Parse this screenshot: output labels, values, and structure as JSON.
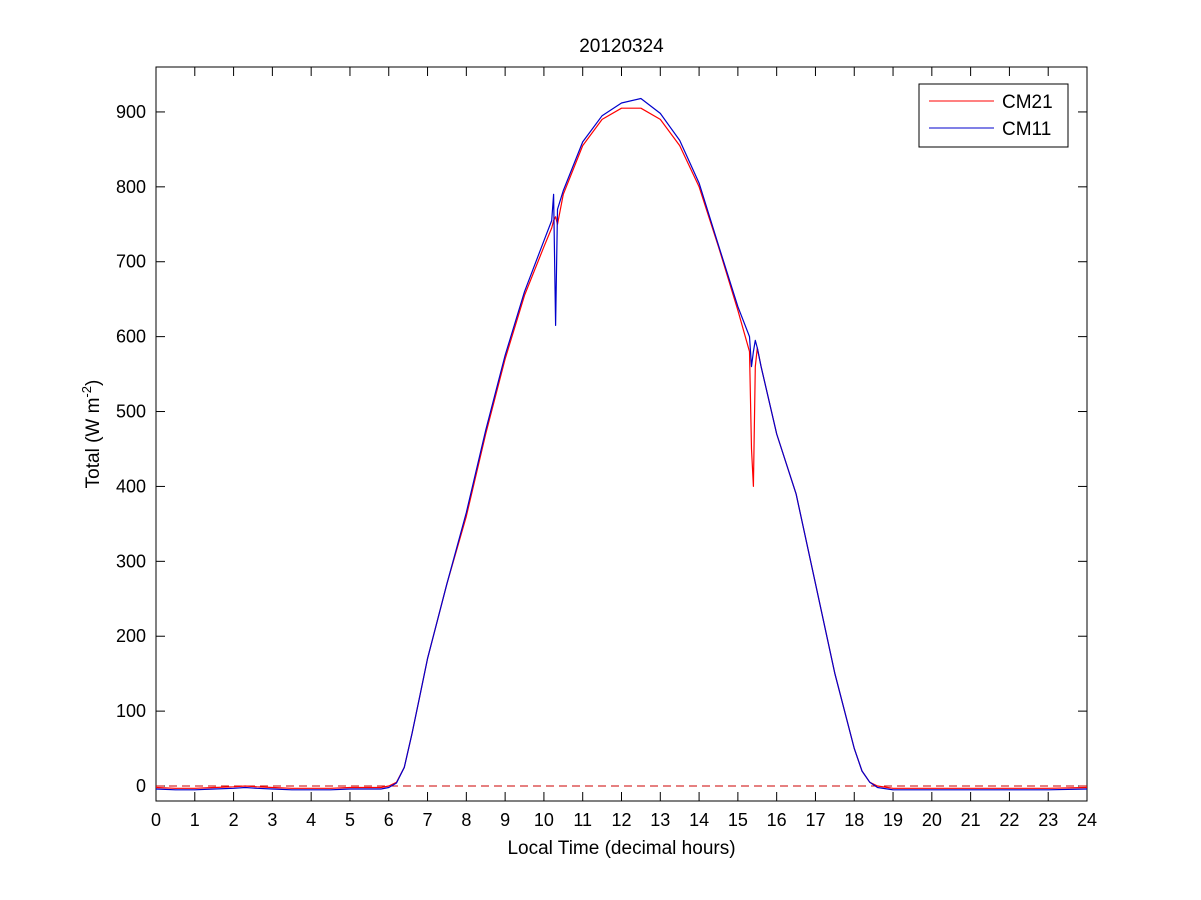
{
  "chart_data": {
    "type": "line",
    "title": "20120324",
    "xlabel": "Local Time (decimal hours)",
    "ylabel": "Total (W m",
    "ylabel_superscript": "-2",
    "ylabel_suffix": ")",
    "xlim": [
      0,
      24
    ],
    "ylim": [
      -20,
      960
    ],
    "xticks": [
      0,
      1,
      2,
      3,
      4,
      5,
      6,
      7,
      8,
      9,
      10,
      11,
      12,
      13,
      14,
      15,
      16,
      17,
      18,
      19,
      20,
      21,
      22,
      23,
      24
    ],
    "yticks": [
      0,
      100,
      200,
      300,
      400,
      500,
      600,
      700,
      800,
      900
    ],
    "grid": false,
    "legend_position": "top-right",
    "reference_line": {
      "y": 0,
      "style": "dashed",
      "color": "#cc0000"
    },
    "series": [
      {
        "name": "CM21",
        "color": "#ff0000",
        "x": [
          0,
          0.5,
          1,
          1.5,
          2,
          2.3,
          2.6,
          3,
          3.5,
          4,
          4.5,
          5,
          5.5,
          5.8,
          6.0,
          6.2,
          6.4,
          6.6,
          6.8,
          7,
          7.5,
          8,
          8.5,
          9,
          9.5,
          10,
          10.2,
          10.25,
          10.3,
          10.35,
          10.5,
          11,
          11.5,
          12,
          12.5,
          13,
          13.5,
          14,
          14.5,
          15,
          15.3,
          15.35,
          15.4,
          15.45,
          15.5,
          15.6,
          16,
          16.5,
          17,
          17.5,
          18,
          18.2,
          18.4,
          18.6,
          19,
          20,
          21,
          22,
          23,
          24
        ],
        "y": [
          -2,
          -3,
          -3,
          -2,
          -1,
          0,
          -1,
          -2,
          -3,
          -3,
          -3,
          -2,
          -2,
          -2,
          0,
          5,
          25,
          70,
          120,
          170,
          270,
          360,
          470,
          570,
          655,
          720,
          745,
          755,
          760,
          750,
          790,
          855,
          890,
          905,
          905,
          890,
          855,
          800,
          720,
          635,
          580,
          450,
          400,
          560,
          585,
          560,
          470,
          390,
          270,
          150,
          50,
          20,
          5,
          0,
          -3,
          -3,
          -3,
          -3,
          -3,
          -2
        ]
      },
      {
        "name": "CM11",
        "color": "#0000cc",
        "x": [
          0,
          0.5,
          1,
          1.5,
          2,
          2.3,
          2.6,
          3,
          3.5,
          4,
          4.5,
          5,
          5.5,
          5.8,
          6.0,
          6.2,
          6.4,
          6.6,
          6.8,
          7,
          7.5,
          8,
          8.5,
          9,
          9.5,
          10,
          10.2,
          10.25,
          10.3,
          10.35,
          10.5,
          11,
          11.5,
          12,
          12.5,
          13,
          13.5,
          14,
          14.5,
          15,
          15.3,
          15.35,
          15.4,
          15.45,
          15.5,
          15.6,
          16,
          16.5,
          17,
          17.5,
          18,
          18.2,
          18.4,
          18.6,
          19,
          20,
          21,
          22,
          23,
          24
        ],
        "y": [
          -4,
          -5,
          -5,
          -4,
          -3,
          -2,
          -3,
          -4,
          -5,
          -5,
          -5,
          -4,
          -4,
          -4,
          -2,
          4,
          25,
          70,
          120,
          170,
          270,
          365,
          475,
          575,
          660,
          728,
          755,
          790,
          615,
          770,
          795,
          860,
          895,
          912,
          918,
          898,
          862,
          805,
          722,
          640,
          600,
          560,
          580,
          595,
          585,
          560,
          470,
          390,
          270,
          150,
          50,
          20,
          5,
          -2,
          -5,
          -5,
          -5,
          -5,
          -5,
          -4
        ]
      }
    ]
  }
}
